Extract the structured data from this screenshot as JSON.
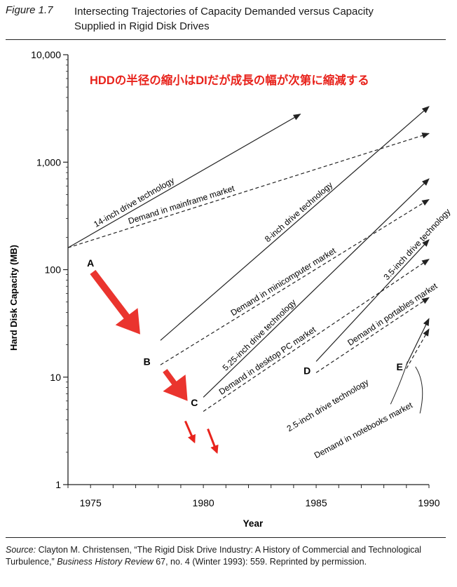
{
  "figure": {
    "label": "Figure 1.7",
    "title_line1": "Intersecting Trajectories of Capacity Demanded versus Capacity",
    "title_line2": "Supplied in Rigid Disk Drives"
  },
  "source": {
    "label": "Source:",
    "text1": " Clayton M. Christensen, “The Rigid Disk Drive Industry: A History of Commercial and Technological Turbulence,” ",
    "journal": "Business History Review",
    "text2": " 67, no. 4 (Winter 1993): 559. Reprinted by permission."
  },
  "chart_data": {
    "type": "line",
    "title": "",
    "annotation_jp": "HDDの半径の縮小はDIだが成長の幅が次第に縮減する",
    "xlabel": "Year",
    "ylabel": "Hard Disk Capacity (MB)",
    "xlim": [
      1974,
      1990
    ],
    "ylim": [
      1,
      10000
    ],
    "yscale": "log",
    "x_ticks": [
      1975,
      1980,
      1985,
      1990
    ],
    "x_tick_labels": [
      "1975",
      "1980",
      "1985",
      "1990"
    ],
    "y_ticks": [
      1,
      10,
      100,
      1000,
      10000
    ],
    "y_tick_labels": [
      "1",
      "10",
      "100",
      "1,000",
      "10,000"
    ],
    "grid": false,
    "series": [
      {
        "name": "14-inch drive technology",
        "style": "solid",
        "x": [
          1974,
          1984.3
        ],
        "y": [
          160,
          2800
        ]
      },
      {
        "name": "Demand in mainframe market",
        "style": "dashed",
        "x": [
          1974,
          1990
        ],
        "y": [
          160,
          1850
        ]
      },
      {
        "name": "8-inch drive technology",
        "style": "solid",
        "x": [
          1978.1,
          1990
        ],
        "y": [
          22,
          3300
        ]
      },
      {
        "name": "Demand in minicomputer market",
        "style": "dashed",
        "x": [
          1978.1,
          1990
        ],
        "y": [
          13,
          450
        ]
      },
      {
        "name": "5.25-inch drive technology",
        "style": "solid",
        "x": [
          1980,
          1990
        ],
        "y": [
          6.5,
          700
        ]
      },
      {
        "name": "Demand in desktop PC market",
        "style": "dashed",
        "x": [
          1980,
          1990
        ],
        "y": [
          4.8,
          125
        ]
      },
      {
        "name": "3.5-inch drive technology",
        "style": "solid",
        "x": [
          1985,
          1990
        ],
        "y": [
          14,
          190
        ]
      },
      {
        "name": "Demand in portables market",
        "style": "dashed",
        "x": [
          1985,
          1990
        ],
        "y": [
          11,
          55
        ]
      },
      {
        "name": "2.5-inch drive technology",
        "style": "solid",
        "x": [
          1989,
          1990
        ],
        "y": [
          13,
          35
        ]
      },
      {
        "name": "Demand in notebooks market",
        "style": "dashed",
        "x": [
          1989,
          1990
        ],
        "y": [
          12,
          28
        ]
      }
    ],
    "points": [
      {
        "label": "A",
        "x": 1975,
        "y": 115
      },
      {
        "label": "B",
        "x": 1977.5,
        "y": 14
      },
      {
        "label": "C",
        "x": 1979.6,
        "y": 5.8
      },
      {
        "label": "D",
        "x": 1984.6,
        "y": 11.5
      },
      {
        "label": "E",
        "x": 1988.7,
        "y": 12.5
      }
    ],
    "colors": {
      "lines": "#222222",
      "annotation": "#e8231c",
      "arrows": "#e8231c"
    }
  }
}
